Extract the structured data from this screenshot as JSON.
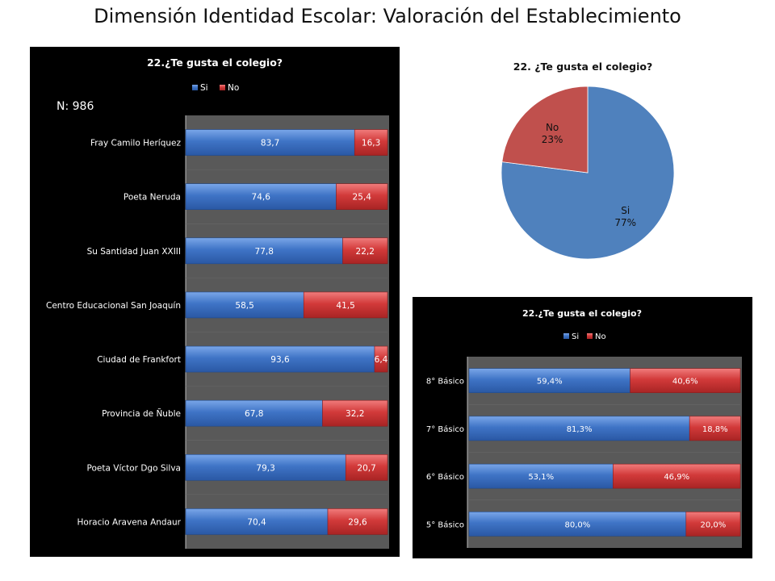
{
  "page": {
    "title": "Dimensión Identidad Escolar: Valoración del Establecimiento"
  },
  "chart_data": [
    {
      "type": "bar",
      "orientation": "horizontal",
      "stacked": true,
      "title": "22.¿Te gusta el colegio?",
      "annotation": "N: 986",
      "legend": [
        "Si",
        "No"
      ],
      "legend_position": "top",
      "categories": [
        "Fray Camilo Heríquez",
        "Poeta Neruda",
        "Su Santidad Juan XXIII",
        "Centro Educacional San Joaquín",
        "Ciudad de Frankfort",
        "Provincia de Ñuble",
        "Poeta Víctor Dgo Silva",
        "Horacio Aravena Andaur"
      ],
      "series": [
        {
          "name": "Si",
          "values": [
            83.7,
            74.6,
            77.8,
            58.5,
            93.6,
            67.8,
            79.3,
            70.4
          ],
          "labels": [
            "83,7",
            "74,6",
            "77,8",
            "58,5",
            "93,6",
            "67,8",
            "79,3",
            "70,4"
          ]
        },
        {
          "name": "No",
          "values": [
            16.3,
            25.4,
            22.2,
            41.5,
            6.4,
            32.2,
            20.7,
            29.6
          ],
          "labels": [
            "16,3",
            "25,4",
            "22,2",
            "41,5",
            "6,4",
            "32,2",
            "20,7",
            "29,6"
          ]
        }
      ],
      "xlim": [
        0,
        100
      ],
      "colors": {
        "Si": "#3f74c6",
        "No": "#d23a3a",
        "background": "#000000",
        "plot": "#595959"
      }
    },
    {
      "type": "pie",
      "title": "22. ¿Te gusta el colegio?",
      "slices": [
        {
          "name": "Si",
          "value": 77,
          "label": "77%",
          "color": "#4f81bd"
        },
        {
          "name": "No",
          "value": 23,
          "label": "23%",
          "color": "#c0504d"
        }
      ]
    },
    {
      "type": "bar",
      "orientation": "horizontal",
      "stacked": true,
      "title": "22.¿Te gusta el colegio?",
      "legend": [
        "Si",
        "No"
      ],
      "legend_position": "top",
      "categories": [
        "8° Básico",
        "7° Básico",
        "6° Básico",
        "5° Básico"
      ],
      "series": [
        {
          "name": "Si",
          "values": [
            59.4,
            81.3,
            53.1,
            80.0
          ],
          "labels": [
            "59,4%",
            "81,3%",
            "53,1%",
            "80,0%"
          ]
        },
        {
          "name": "No",
          "values": [
            40.6,
            18.8,
            46.9,
            20.0
          ],
          "labels": [
            "40,6%",
            "18,8%",
            "46,9%",
            "20,0%"
          ]
        }
      ],
      "xlim": [
        0,
        100
      ],
      "colors": {
        "Si": "#3f74c6",
        "No": "#d23a3a",
        "background": "#000000",
        "plot": "#595959"
      }
    }
  ]
}
